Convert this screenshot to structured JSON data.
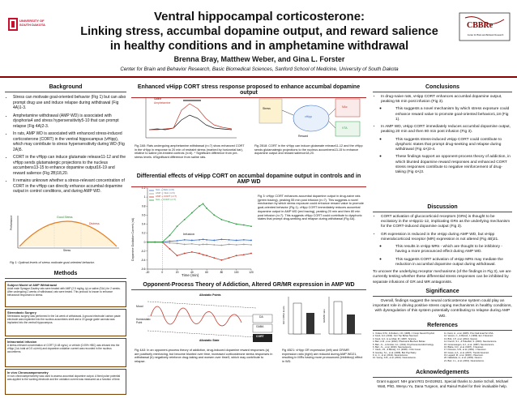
{
  "header": {
    "title_line1": "Ventral hippocampal corticosterone:",
    "title_line2": "Linking stress, accumbal dopamine output, and reward salience",
    "title_line3": "in healthy conditions and in amphetamine withdrawal",
    "authors": "Brenna Bray, Matthew Weber, and Gina L. Forster",
    "affiliation": "Center for Brain and Behavior Research, Basic Biomedical Sciences, Sanford School of Medicine, University of South Dakota",
    "logo_left_text": "UNIVERSITY OF SOUTH DAKOTA",
    "logo_right_text": "CBBRe",
    "logo_right_sub": "Center for Brain and Behavior Research"
  },
  "background": {
    "heading": "Background",
    "bullets": [
      "Stress can motivate goal-oriented behavior (Fig 1) but can also prompt drug use and induce relapse during withdrawal (Fig 4A)1-3.",
      "Amphetamine withdrawal (AMP WD) is associated with dysphoria4 and stress hypersensitivity5-10 that can prompt relapse (Fig 4A)2-3.",
      "In rats, AMP WD is associated with enhanced stress-induced corticosterone (CORT) in the ventral hippocampus (vHipp), which may contribute to stress hypersensitivity during WD (Fig 2A)5.",
      "CORT in the vHipp can induce glutamate release11-12 and the vHipp sends glutamatergic projections to the nucleus accumbens13-15 to enhance dopamine output16-19 and reward salience (Fig 2B)18,20.",
      "It remains unknown whether a stress-relevant concentration of CORT in the vHipp can directly enhance accumbal dopamine output in control conditions, and during AMP WD."
    ],
    "fig1_labels": [
      "Distress",
      "Good Stress",
      "Performance",
      "Stress"
    ],
    "fig1_caption": "Fig 1: Optimal levels of stress motivate goal-oriented behavior."
  },
  "methods": {
    "heading": "Methods",
    "boxes": [
      {
        "title": "Subject Model of AMP Withdrawal",
        "text": "Adult male Sprague-Dawley rats were treated with AMP (2.5 mg/kg, ip) or saline (SAL) for 2 weeks. After undergoing 2 weeks of withdrawal, rats were tested. This protocol is known to enhance behavioral responses to stress."
      },
      {
        "title": "Stereotaxic Surgery",
        "text": "Stereotaxic surgery was performed in the 1st week of withdrawal. A ground electrode/ carbon paste electrode was implanted into the nucleus accumbens shell and a 22 gauge guide cannula was implanted into the ventral hippocampus."
      },
      {
        "title": "Intracranial infusion",
        "text": "A stress-relevant concentration of CORT (0.48 ng/uL) or vehicle (0.05% HBC) was infused into the vHipp (1uL total at 0.5 uL/min) and dopamine oxidation current was recorded in the nucleus accumbens."
      },
      {
        "title": "In vivo Chronoamperometry",
        "text": "In vivo chronoamperometry was used to assess accumbal dopamine output. A fixed pulse potential was applied to the working electrode and the oxidation current was measured as a function of time."
      }
    ]
  },
  "enhanced": {
    "heading": "Enhanced vHipp CORT stress response proposed to enhance accumbal dopamine output",
    "fig2a_legend": [
      "Saline",
      "Amphetamine"
    ],
    "fig2a_caption": "Fig 2A5: Rats undergoing amphetamine withdrawal (n=7) show enhanced CORT in the vHipp in response to 20 min of restraint stress (marked by horizontal bar), relative to saline pre-treated controls (n=6). * Significant difference from pre-stress levels. #Significant difference from saline rats.",
    "fig2b_labels": [
      "Stress",
      "vHipp",
      "NAc",
      "VTA",
      "Reward"
    ],
    "fig2b_caption": "Fig 2B18: CORT in the vHipp can induce glutamate release11-12 and the vHipp sends glutamatergic projections to the nucleus accumbens13-15 to enhance dopamine output and reward salience18,20."
  },
  "differential": {
    "heading": "Differential effects of vHipp CORT on accumbal dopamine output in controls and in AMP WD",
    "legend": [
      "SAL + VEH (n=6)",
      "AMP + VEH (n=6)",
      "AMP + CORT (n=7)",
      "SAL + CORT (n=7)"
    ],
    "infusion_label": "Infusion",
    "fig3_caption": "Fig 3: vHipp CORT enhances accumbal dopamine output in drug-naive rats (green tracing), peaking 55 min post infusion (n=7). This suggests a novel mechanism by which stress exposure could enhance reward value to promote goal-oriented behavior (Fig 1). vHipp CORT immediately reduces accumbal dopamine output in AMP WD (red tracing), peaking 20 min and then 80 min post infusion (n=7). This suggests vHipp CORT could contribute to dysphoric states that prompt drug-seeking and relapse during withdrawal (Fig 4A)."
  },
  "chart_data": {
    "type": "line",
    "title": "",
    "xlabel": "Time (min)",
    "ylabel": "Dopamine Oxidation Current (nA)",
    "xlim": [
      -20,
      120
    ],
    "ylim": [
      -0.6,
      1.2
    ],
    "x": [
      -20,
      -10,
      0,
      10,
      20,
      30,
      40,
      50,
      55,
      60,
      70,
      80,
      90,
      100,
      110,
      120
    ],
    "series": [
      {
        "name": "SAL + VEH (n=6)",
        "color": "#3b6fc4",
        "values": [
          0,
          0,
          0,
          0.02,
          0.03,
          0.05,
          0.04,
          0.05,
          0.06,
          0.05,
          0.04,
          0.06,
          0.05,
          0.04,
          0.05,
          0.04
        ]
      },
      {
        "name": "AMP + VEH (n=6)",
        "color": "#999999",
        "values": [
          0,
          0,
          0,
          -0.02,
          -0.03,
          -0.05,
          -0.04,
          -0.06,
          -0.05,
          -0.05,
          -0.06,
          -0.07,
          -0.05,
          -0.06,
          -0.05,
          -0.06
        ]
      },
      {
        "name": "AMP + CORT (n=7)",
        "color": "#c0392b",
        "values": [
          0,
          0,
          0,
          -0.15,
          -0.3,
          -0.25,
          -0.22,
          -0.25,
          -0.28,
          -0.3,
          -0.35,
          -0.4,
          -0.35,
          -0.3,
          -0.28,
          -0.25
        ]
      },
      {
        "name": "SAL + CORT (n=7)",
        "color": "#2e9e44",
        "values": [
          0,
          0,
          0,
          0.15,
          0.35,
          0.5,
          0.65,
          0.8,
          0.85,
          0.75,
          0.6,
          0.5,
          0.45,
          0.4,
          0.38,
          0.35
        ]
      }
    ],
    "xticks": [
      -20,
      0,
      20,
      40,
      60,
      80,
      100,
      120
    ],
    "yticks": [
      -0.6,
      -0.4,
      -0.2,
      0,
      0.2,
      0.4,
      0.6,
      0.8,
      1.0,
      1.2
    ]
  },
  "opponent": {
    "heading": "Opponent-Process Theory of Addiction, Altered GR/MR expression in AMP WD",
    "fig4a_labels": [
      "Allostatic Points",
      "Mood",
      "Homeostatic Point",
      "Allostatic State",
      "DA",
      "GABA",
      "CORT"
    ],
    "fig4a_caption": "Fig 4A3: In an opponent-process theory of addiction, drug-induced dopamine reward responses (a) are positively reinforcing, but become blunted over time, increased corticosterone stress responses in withdrawal (b) negatively reinforce drug-taking and worsen over time3, which may contribute to relapse.",
    "fig4b_caption": "Fig 4B21: vHipp GR expression (left) and GR/MR expression ratio (right) are reduced during AMP WD21, resulting in MRs having more pronounced (inhibitory) effect in WD.",
    "fig4b_ylabels": [
      "GR mRNA levels",
      "GR/MR ratio"
    ]
  },
  "conclusions": {
    "heading": "Conclusions",
    "bullets": [
      "In drug-naive rats, vHipp CORT enhances accumbal dopamine output, peaking 55 min post infusion (Fig 3).",
      "This suggests a novel mechanism by which stress exposure could enhance reward value to promote goal-oriented behavior1,18 (Fig 1).",
      "In AMP WD, vHipp CORT immediately reduces accumbal dopamine output, peaking 20 min and then 80 min post infusion (Fig 3).",
      "This suggests stress-induced vHipp CORT could contribute to dysphoric states that prompt drug-seeking and relapse during withdrawal (Fig 4A)3-4.",
      "These findings support an opponent-process theory of addiction, in which blunted dopamine reward responses and enhanced CORT stress responses contribute to negative reinforcement of drug-taking (Fig 4A)3."
    ]
  },
  "discussion": {
    "heading": "Discussion",
    "bullets": [
      "CORT activation of glucocorticoid receptors (GRs) is thought to be excitatory in the vHipp11-12, implicating GRs as the underlying mechanism for the CORT-induced dopamine output (Fig 3).",
      "GR expression is reduced in the vHipp during AMP WD, but vHipp mineralocorticoid receptor (MR) expression is not altered (Fig 4B)21.",
      "This results in vHipp MRs - which are thought to be inhibitory - having a more pronounced effect during AMP WD.",
      "This suggests CORT activation of vHipp MRs may mediate the reduction in accumbal dopamine output during withdrawal."
    ],
    "closing": "To uncover the underlying receptor mechanisms (of the findings in Fig 3), we are currently testing whether these differential stress responses can be inhibited by separate infusions of GR and MR antagonists."
  },
  "significance": {
    "heading": "Significance",
    "text": "Overall, findings suggest the neural corticosterone system could play an important role in driving positive stress coping mechanisms in healthy conditions, with dysregulation of this system potentially contributing to relapse during AMP WD."
  },
  "references": {
    "heading": "References",
    "col1": [
      "1. Yerkes, R.M., & Dodson, J.D. (1908). J Comp Neurol Psychol.",
      "2. Koob, G.F. (2013). Curr Top Behav Neurosci.",
      "3. Koob, G.F., & Le Moal, M. (1997). Science.",
      "4. Barr, A.M., et al. (2002). Pharmacol Biochem Behav.",
      "5. Barr, J.L., & Forster, G.L. (2011). Psychoneuroendocrinology.",
      "6. Barr, J.L., et al. (2010). Neuroscience.",
      "7. Cleck, J.N., & Blendy, J.A. (2008). J Clin Invest.",
      "8. Gourley, S.L., et al. (2008). Biol Psychiatry.",
      "9. Li, C., et al. (2014). Neuroscience.",
      "10. Vuong, S.M., et al. (2010). Neuroscience."
    ],
    "col2": [
      "11. Karst, H., et al. (2005). Proc Natl Acad Sci USA.",
      "12. Venero, C., & Borrell, J. (1999). Eur J Neurosci.",
      "13. Britt, J.P., et al. (2012). Neuron.",
      "14. French, S.J., & Totterdell, S. (2003). Neuroscience.",
      "15. Groenewegen, H.J., et al. (1987). Neuroscience.",
      "16. Blaha, C.D., et al. (1997). J Neurosci.",
      "17. Floresco, S.B., et al. (2001). J Neurosci.",
      "18. Grace, A.A., et al. (2007). Trends Neurosci.",
      "19. Legault, M., et al. (2000). J Neurosci.",
      "20. Nakahara, H., et al. (2004). Neuron.",
      "21. Barr, J.L., et al. (2013). Neuroscience."
    ]
  },
  "acknowledgements": {
    "heading": "Acknowledgements",
    "text": "Grant support: NIH grant R01 DA019921. Special thanks to Jamie Scholl, Michael Watt, PhD, Wenyu Yu, Dana Turgeon, and Raisul Rubel for their invaluable help."
  }
}
